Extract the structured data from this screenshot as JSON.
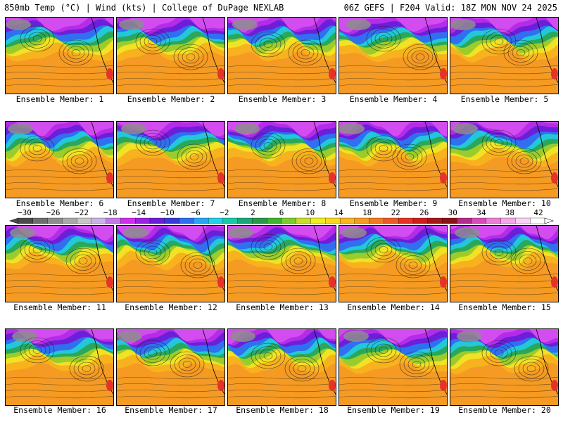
{
  "header": {
    "left": "850mb Temp (°C) | Wind (kts) | College of DuPage NEXLAB",
    "right": "06Z GEFS | F204 Valid: 18Z MON NOV 24 2025"
  },
  "members": [
    "Ensemble Member: 1",
    "Ensemble Member: 2",
    "Ensemble Member: 3",
    "Ensemble Member: 4",
    "Ensemble Member: 5",
    "Ensemble Member: 6",
    "Ensemble Member: 7",
    "Ensemble Member: 8",
    "Ensemble Member: 9",
    "Ensemble Member: 10",
    "Ensemble Member: 11",
    "Ensemble Member: 12",
    "Ensemble Member: 13",
    "Ensemble Member: 14",
    "Ensemble Member: 15",
    "Ensemble Member: 16",
    "Ensemble Member: 17",
    "Ensemble Member: 18",
    "Ensemble Member: 19",
    "Ensemble Member: 20"
  ],
  "colorbar": {
    "labels": [
      "−30",
      "−26",
      "−22",
      "−18",
      "−14",
      "−10",
      "−6",
      "−2",
      "2",
      "6",
      "10",
      "14",
      "18",
      "22",
      "26",
      "30",
      "34",
      "38",
      "42"
    ],
    "colors": [
      "#4b4b4b",
      "#6e6e6e",
      "#8d8d8d",
      "#a9a9a9",
      "#c6c6c6",
      "#c9b4e6",
      "#c477e8",
      "#d22cf0",
      "#9a22e0",
      "#6b1fd8",
      "#3a3ad8",
      "#2f6ff0",
      "#26a6f5",
      "#22d0e8",
      "#18c8a8",
      "#1aa878",
      "#27994a",
      "#3fb42f",
      "#7ccc2c",
      "#c8dc2c",
      "#f0ec20",
      "#f8d81e",
      "#f7b61e",
      "#f59a22",
      "#f07a24",
      "#ec5a26",
      "#e63228",
      "#cc1e1e",
      "#a81818",
      "#8c1414",
      "#b42c8c",
      "#d84cb8",
      "#ec7cd6",
      "#f4a8e8",
      "#fad2f4",
      "#ffffff"
    ]
  }
}
